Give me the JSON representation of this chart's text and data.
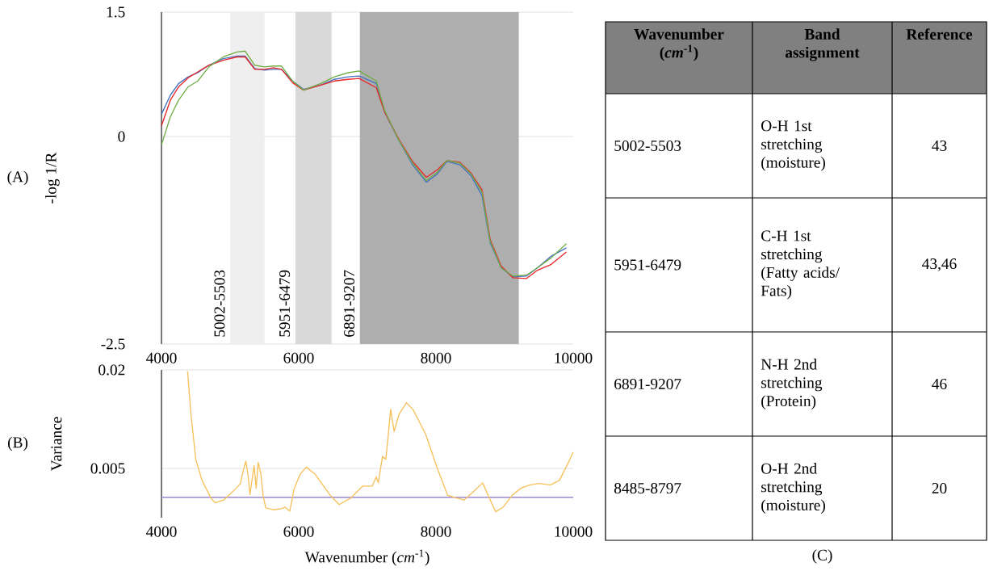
{
  "chart_data": [
    {
      "type": "line",
      "ylabel": "-log 1/R",
      "annotations": [
        "(A)"
      ],
      "x": [
        4000,
        4130,
        4250,
        4390,
        4530,
        4690,
        4900,
        5100,
        5220,
        5360,
        5500,
        5630,
        5750,
        5910,
        6070,
        6320,
        6520,
        6720,
        6880,
        7130,
        7250,
        7450,
        7660,
        7860,
        8020,
        8160,
        8350,
        8510,
        8670,
        8790,
        8950,
        9120,
        9320,
        9480,
        9680,
        9900
      ],
      "series": [
        {
          "color": "#4472c4",
          "values": [
            0.27,
            0.5,
            0.64,
            0.72,
            0.77,
            0.86,
            0.94,
            0.97,
            0.97,
            0.82,
            0.8,
            0.81,
            0.81,
            0.67,
            0.57,
            0.62,
            0.69,
            0.72,
            0.73,
            0.64,
            0.3,
            -0.03,
            -0.34,
            -0.55,
            -0.45,
            -0.3,
            -0.34,
            -0.47,
            -0.71,
            -1.28,
            -1.58,
            -1.69,
            -1.68,
            -1.58,
            -1.44,
            -1.34
          ]
        },
        {
          "color": "#e8262a",
          "values": [
            0.13,
            0.44,
            0.6,
            0.71,
            0.78,
            0.86,
            0.92,
            0.96,
            0.96,
            0.81,
            0.81,
            0.83,
            0.81,
            0.65,
            0.56,
            0.62,
            0.67,
            0.69,
            0.7,
            0.59,
            0.3,
            -0.02,
            -0.3,
            -0.49,
            -0.4,
            -0.29,
            -0.31,
            -0.44,
            -0.64,
            -1.24,
            -1.56,
            -1.7,
            -1.71,
            -1.61,
            -1.54,
            -1.39
          ]
        },
        {
          "color": "#70ad47",
          "values": [
            -0.1,
            0.24,
            0.44,
            0.6,
            0.67,
            0.84,
            0.96,
            1.02,
            1.03,
            0.86,
            0.84,
            0.85,
            0.85,
            0.67,
            0.56,
            0.64,
            0.72,
            0.77,
            0.79,
            0.67,
            0.32,
            -0.03,
            -0.32,
            -0.53,
            -0.43,
            -0.29,
            -0.32,
            -0.45,
            -0.67,
            -1.26,
            -1.58,
            -1.68,
            -1.67,
            -1.58,
            -1.46,
            -1.29
          ]
        }
      ],
      "xlim": [
        4000,
        10000
      ],
      "ylim": [
        -2.5,
        1.5
      ],
      "xticks": [
        4000,
        6000,
        8000,
        10000
      ],
      "yticks": [
        -2.5,
        0,
        1.5
      ],
      "grid": "y",
      "bands": [
        {
          "axis": "x",
          "from": 5002,
          "to": 5503,
          "label": "5002-5503",
          "color": "#efefef"
        },
        {
          "axis": "x",
          "from": 5951,
          "to": 6479,
          "label": "5951-6479",
          "color": "#d9d9d9"
        },
        {
          "axis": "x",
          "from": 6891,
          "to": 9207,
          "label": "6891-9207",
          "color": "#aeaeae"
        }
      ]
    },
    {
      "type": "line",
      "xlabel": "Wavenumber (*cm*$^{-1}$)",
      "ylabel": "Variance",
      "annotations": [
        "(B)"
      ],
      "x": [
        4380,
        4430,
        4500,
        4590,
        4720,
        4780,
        4910,
        5090,
        5150,
        5200,
        5230,
        5260,
        5290,
        5330,
        5350,
        5380,
        5410,
        5450,
        5480,
        5520,
        5630,
        5760,
        5800,
        5870,
        5930,
        6020,
        6110,
        6240,
        6460,
        6590,
        6760,
        6930,
        7070,
        7130,
        7160,
        7220,
        7270,
        7300,
        7340,
        7390,
        7460,
        7570,
        7670,
        7850,
        8020,
        8170,
        8410,
        8540,
        8680,
        8760,
        8870,
        8980,
        9110,
        9240,
        9370,
        9500,
        9670,
        9800,
        9930,
        10000
      ],
      "series": [
        {
          "color": "#9e86d6",
          "x": [
            4000,
            10000
          ],
          "values": [
            0.0006,
            0.0006
          ]
        },
        {
          "color": "#f6c05a",
          "values": [
            0.0198,
            0.0132,
            0.0064,
            0.0032,
            0.0005,
            -0.0002,
            0.0002,
            0.002,
            0.0027,
            0.005,
            0.0061,
            0.0041,
            0.001,
            0.0041,
            0.0054,
            0.002,
            0.0059,
            0.0041,
            0.0009,
            -0.001,
            -0.0013,
            -0.0011,
            -0.0009,
            -0.0015,
            0.0018,
            0.0041,
            0.0052,
            0.0041,
            0.0009,
            -0.0005,
            0.0005,
            0.0023,
            0.0023,
            0.0037,
            0.0028,
            0.0068,
            0.0064,
            0.0096,
            0.014,
            0.0106,
            0.0132,
            0.015,
            0.0139,
            0.0102,
            0.005,
            0.0009,
            0.0002,
            0.0014,
            0.0028,
            0.0009,
            -0.0016,
            -0.0009,
            0.0009,
            0.002,
            0.0025,
            0.0027,
            0.0025,
            0.0032,
            0.0059,
            0.0075
          ]
        }
      ],
      "xlim": [
        4000,
        10000
      ],
      "ylim": [
        -0.0025,
        0.02
      ],
      "xticks": [
        4000,
        6000,
        8000,
        10000
      ],
      "yticks": [
        0.005,
        0.02
      ],
      "grid": "y"
    },
    {
      "type": "other",
      "categories": [
        "Wavenumber (*cm*$^{-1}$)",
        "Band assignment",
        "Reference"
      ],
      "annotations": [
        "5002-5503",
        "O-H 1st stretching (moisture)",
        "43",
        "5951-6479",
        "C-H 1st stretching (Fatty acids/ Fats)",
        "43,46",
        "6891-9207",
        "N-H 2nd stretching (Protein)",
        "46",
        "8485-8797",
        "O-H 2nd stretching (moisture)",
        "20",
        "(C)"
      ]
    }
  ]
}
